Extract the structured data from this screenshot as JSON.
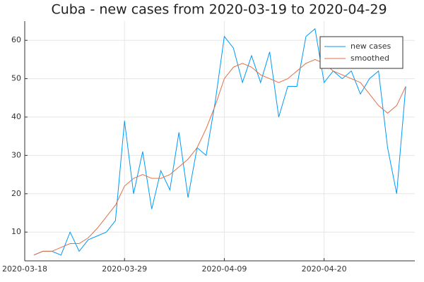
{
  "chart_data": {
    "type": "line",
    "title": "Cuba - new cases from 2020-03-19 to 2020-04-29",
    "x": [
      "2020-03-19",
      "2020-03-20",
      "2020-03-21",
      "2020-03-22",
      "2020-03-23",
      "2020-03-24",
      "2020-03-25",
      "2020-03-26",
      "2020-03-27",
      "2020-03-28",
      "2020-03-29",
      "2020-03-30",
      "2020-03-31",
      "2020-04-01",
      "2020-04-02",
      "2020-04-03",
      "2020-04-04",
      "2020-04-05",
      "2020-04-06",
      "2020-04-07",
      "2020-04-08",
      "2020-04-09",
      "2020-04-10",
      "2020-04-11",
      "2020-04-12",
      "2020-04-13",
      "2020-04-14",
      "2020-04-15",
      "2020-04-16",
      "2020-04-17",
      "2020-04-18",
      "2020-04-19",
      "2020-04-20",
      "2020-04-21",
      "2020-04-22",
      "2020-04-23",
      "2020-04-24",
      "2020-04-25",
      "2020-04-26",
      "2020-04-27",
      "2020-04-28",
      "2020-04-29"
    ],
    "series": [
      {
        "name": "new cases",
        "color": "#009af9",
        "values": [
          4,
          5,
          5,
          4,
          10,
          5,
          8,
          9,
          10,
          13,
          39,
          20,
          31,
          16,
          26,
          21,
          36,
          19,
          32,
          30,
          44,
          61,
          58,
          49,
          56,
          49,
          57,
          40,
          48,
          48,
          61,
          63,
          49,
          52,
          50,
          52,
          46,
          50,
          52,
          32,
          20,
          48
        ]
      },
      {
        "name": "smoothed",
        "color": "#e26f46",
        "values": [
          4,
          5,
          5,
          6,
          7,
          7,
          8.5,
          11,
          14,
          17,
          22,
          24,
          25,
          24,
          24,
          25,
          27,
          29,
          32,
          37,
          43,
          50,
          53,
          54,
          53,
          51,
          50,
          49,
          50,
          52,
          54,
          55,
          54,
          52,
          51,
          50,
          49,
          46,
          43,
          41,
          43,
          48
        ]
      }
    ],
    "xlim": [
      "2020-03-18",
      "2020-04-30"
    ],
    "xticks": [
      "2020-03-18",
      "2020-03-29",
      "2020-04-09",
      "2020-04-20"
    ],
    "ylim": [
      2.5,
      65
    ],
    "yticks": [
      10,
      20,
      30,
      40,
      50,
      60
    ],
    "grid": true,
    "legend": "top-right"
  }
}
